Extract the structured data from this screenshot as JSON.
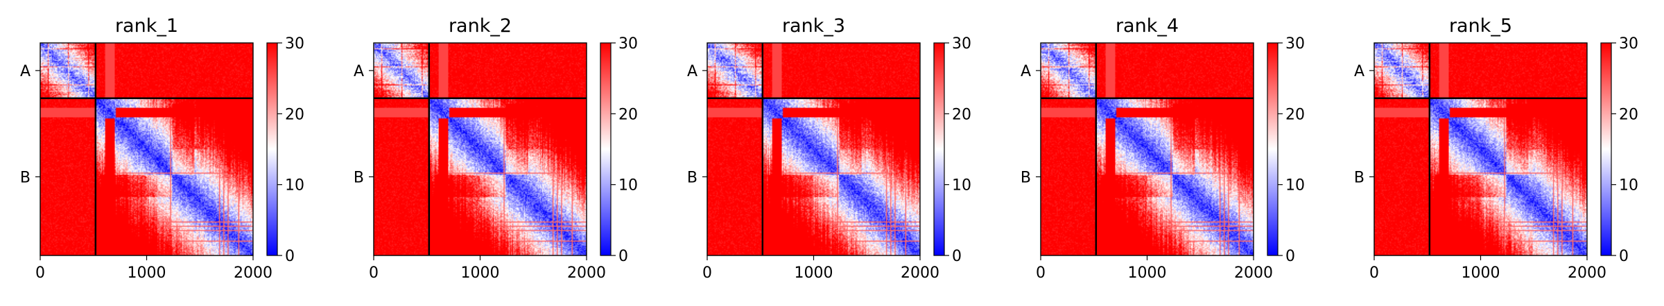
{
  "chart_data": [
    {
      "type": "heatmap",
      "title": "rank_1",
      "x": {
        "ticks": [
          0,
          1000,
          2000
        ],
        "range": [
          0,
          2000
        ]
      },
      "y": {
        "tick_labels": [
          "A",
          "B"
        ],
        "chain_boundary": 520,
        "range": [
          0,
          2000
        ]
      },
      "colorbar": {
        "ticks": [
          0,
          10,
          20,
          30
        ],
        "range": [
          0,
          30
        ],
        "colormap": "bwr",
        "low_color": "#0000ff",
        "mid_color": "#ffffff",
        "high_color": "#ff0000"
      }
    },
    {
      "type": "heatmap",
      "title": "rank_2",
      "x": {
        "ticks": [
          0,
          1000,
          2000
        ],
        "range": [
          0,
          2000
        ]
      },
      "y": {
        "tick_labels": [
          "A",
          "B"
        ],
        "chain_boundary": 520,
        "range": [
          0,
          2000
        ]
      },
      "colorbar": {
        "ticks": [
          0,
          10,
          20,
          30
        ],
        "range": [
          0,
          30
        ],
        "colormap": "bwr",
        "low_color": "#0000ff",
        "mid_color": "#ffffff",
        "high_color": "#ff0000"
      }
    },
    {
      "type": "heatmap",
      "title": "rank_3",
      "x": {
        "ticks": [
          0,
          1000,
          2000
        ],
        "range": [
          0,
          2000
        ]
      },
      "y": {
        "tick_labels": [
          "A",
          "B"
        ],
        "chain_boundary": 520,
        "range": [
          0,
          2000
        ]
      },
      "colorbar": {
        "ticks": [
          0,
          10,
          20,
          30
        ],
        "range": [
          0,
          30
        ],
        "colormap": "bwr",
        "low_color": "#0000ff",
        "mid_color": "#ffffff",
        "high_color": "#ff0000"
      }
    },
    {
      "type": "heatmap",
      "title": "rank_4",
      "x": {
        "ticks": [
          0,
          1000,
          2000
        ],
        "range": [
          0,
          2000
        ]
      },
      "y": {
        "tick_labels": [
          "A",
          "B"
        ],
        "chain_boundary": 520,
        "range": [
          0,
          2000
        ]
      },
      "colorbar": {
        "ticks": [
          0,
          10,
          20,
          30
        ],
        "range": [
          0,
          30
        ],
        "colormap": "bwr",
        "low_color": "#0000ff",
        "mid_color": "#ffffff",
        "high_color": "#ff0000"
      }
    },
    {
      "type": "heatmap",
      "title": "rank_5",
      "x": {
        "ticks": [
          0,
          1000,
          2000
        ],
        "range": [
          0,
          2000
        ]
      },
      "y": {
        "tick_labels": [
          "A",
          "B"
        ],
        "chain_boundary": 520,
        "range": [
          0,
          2000
        ]
      },
      "colorbar": {
        "ticks": [
          0,
          10,
          20,
          30
        ],
        "range": [
          0,
          30
        ],
        "colormap": "bwr",
        "low_color": "#0000ff",
        "mid_color": "#ffffff",
        "high_color": "#ff0000"
      }
    }
  ]
}
